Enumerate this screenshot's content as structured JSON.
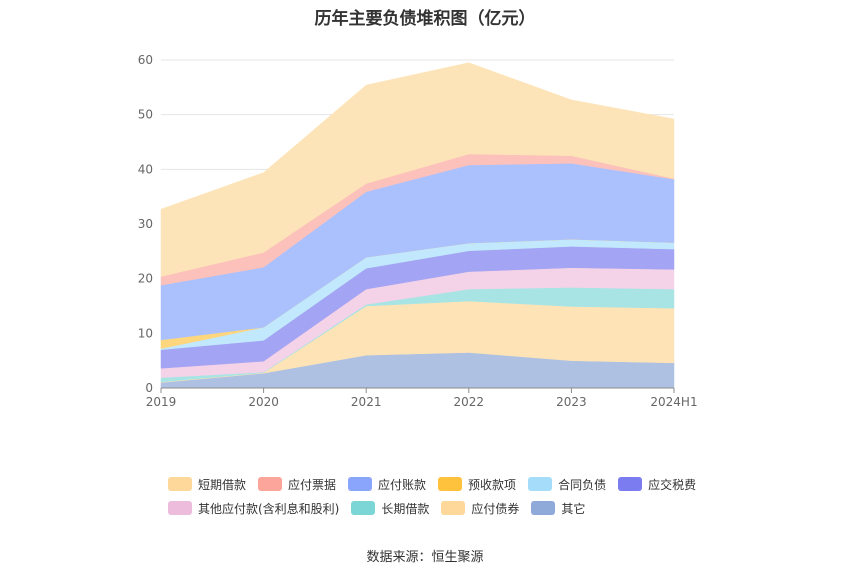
{
  "chart_data": {
    "type": "area",
    "title": "历年主要负债堆积图（亿元）",
    "categories": [
      "2019",
      "2020",
      "2021",
      "2022",
      "2023",
      "2024H1"
    ],
    "ylim": [
      0,
      60
    ],
    "yticks": [
      0,
      10,
      20,
      30,
      40,
      50,
      60
    ],
    "stacked": true,
    "grid": true,
    "legend_position": "bottom",
    "series": [
      {
        "name": "其它",
        "color": "#aec1e2",
        "values": [
          1.0,
          2.7,
          6.0,
          6.5,
          5.0,
          4.6
        ]
      },
      {
        "name": "应付债券",
        "color": "#fde3b6",
        "values": [
          0.1,
          0.1,
          9.0,
          9.4,
          9.9,
          10.0
        ]
      },
      {
        "name": "长期借款",
        "color": "#a9e4e4",
        "values": [
          0.8,
          0.1,
          0.3,
          2.2,
          3.5,
          3.5
        ]
      },
      {
        "name": "其他应付款(含利息和股利)",
        "color": "#f4d2e8",
        "values": [
          1.7,
          2.0,
          2.8,
          3.2,
          3.6,
          3.6
        ]
      },
      {
        "name": "应交税费",
        "color": "#a3a4f3",
        "values": [
          3.4,
          3.8,
          3.8,
          3.8,
          3.9,
          3.7
        ]
      },
      {
        "name": "合同负债",
        "color": "#c1e8fc",
        "values": [
          0.2,
          2.4,
          2.0,
          1.4,
          1.3,
          1.2
        ]
      },
      {
        "name": "预收款项",
        "color": "#fed67e",
        "values": [
          1.6,
          0.0,
          0.0,
          0.0,
          0.0,
          0.0
        ]
      },
      {
        "name": "应付账款",
        "color": "#abc1fe",
        "values": [
          10.0,
          11.0,
          12.0,
          14.3,
          13.9,
          11.6
        ]
      },
      {
        "name": "应付票据",
        "color": "#fcc1bb",
        "values": [
          1.6,
          2.7,
          1.5,
          2.0,
          1.4,
          0.1
        ]
      },
      {
        "name": "短期借款",
        "color": "#fde4b8",
        "values": [
          12.3,
          14.6,
          18.0,
          16.7,
          10.2,
          10.9
        ]
      }
    ],
    "legend": [
      {
        "name": "短期借款",
        "color": "#fdd89a"
      },
      {
        "name": "应付票据",
        "color": "#fba59b"
      },
      {
        "name": "应付账款",
        "color": "#89a6fc"
      },
      {
        "name": "预收款项",
        "color": "#fec23d"
      },
      {
        "name": "合同负债",
        "color": "#a5dcfa"
      },
      {
        "name": "应交税费",
        "color": "#7a7cf0"
      },
      {
        "name": "其他应付款(含利息和股利)",
        "color": "#edbbdb"
      },
      {
        "name": "长期借款",
        "color": "#7dd6d6"
      },
      {
        "name": "应付债券",
        "color": "#fdd89a"
      },
      {
        "name": "其它",
        "color": "#8fa9d8"
      }
    ]
  },
  "source": "数据来源：恒生聚源"
}
